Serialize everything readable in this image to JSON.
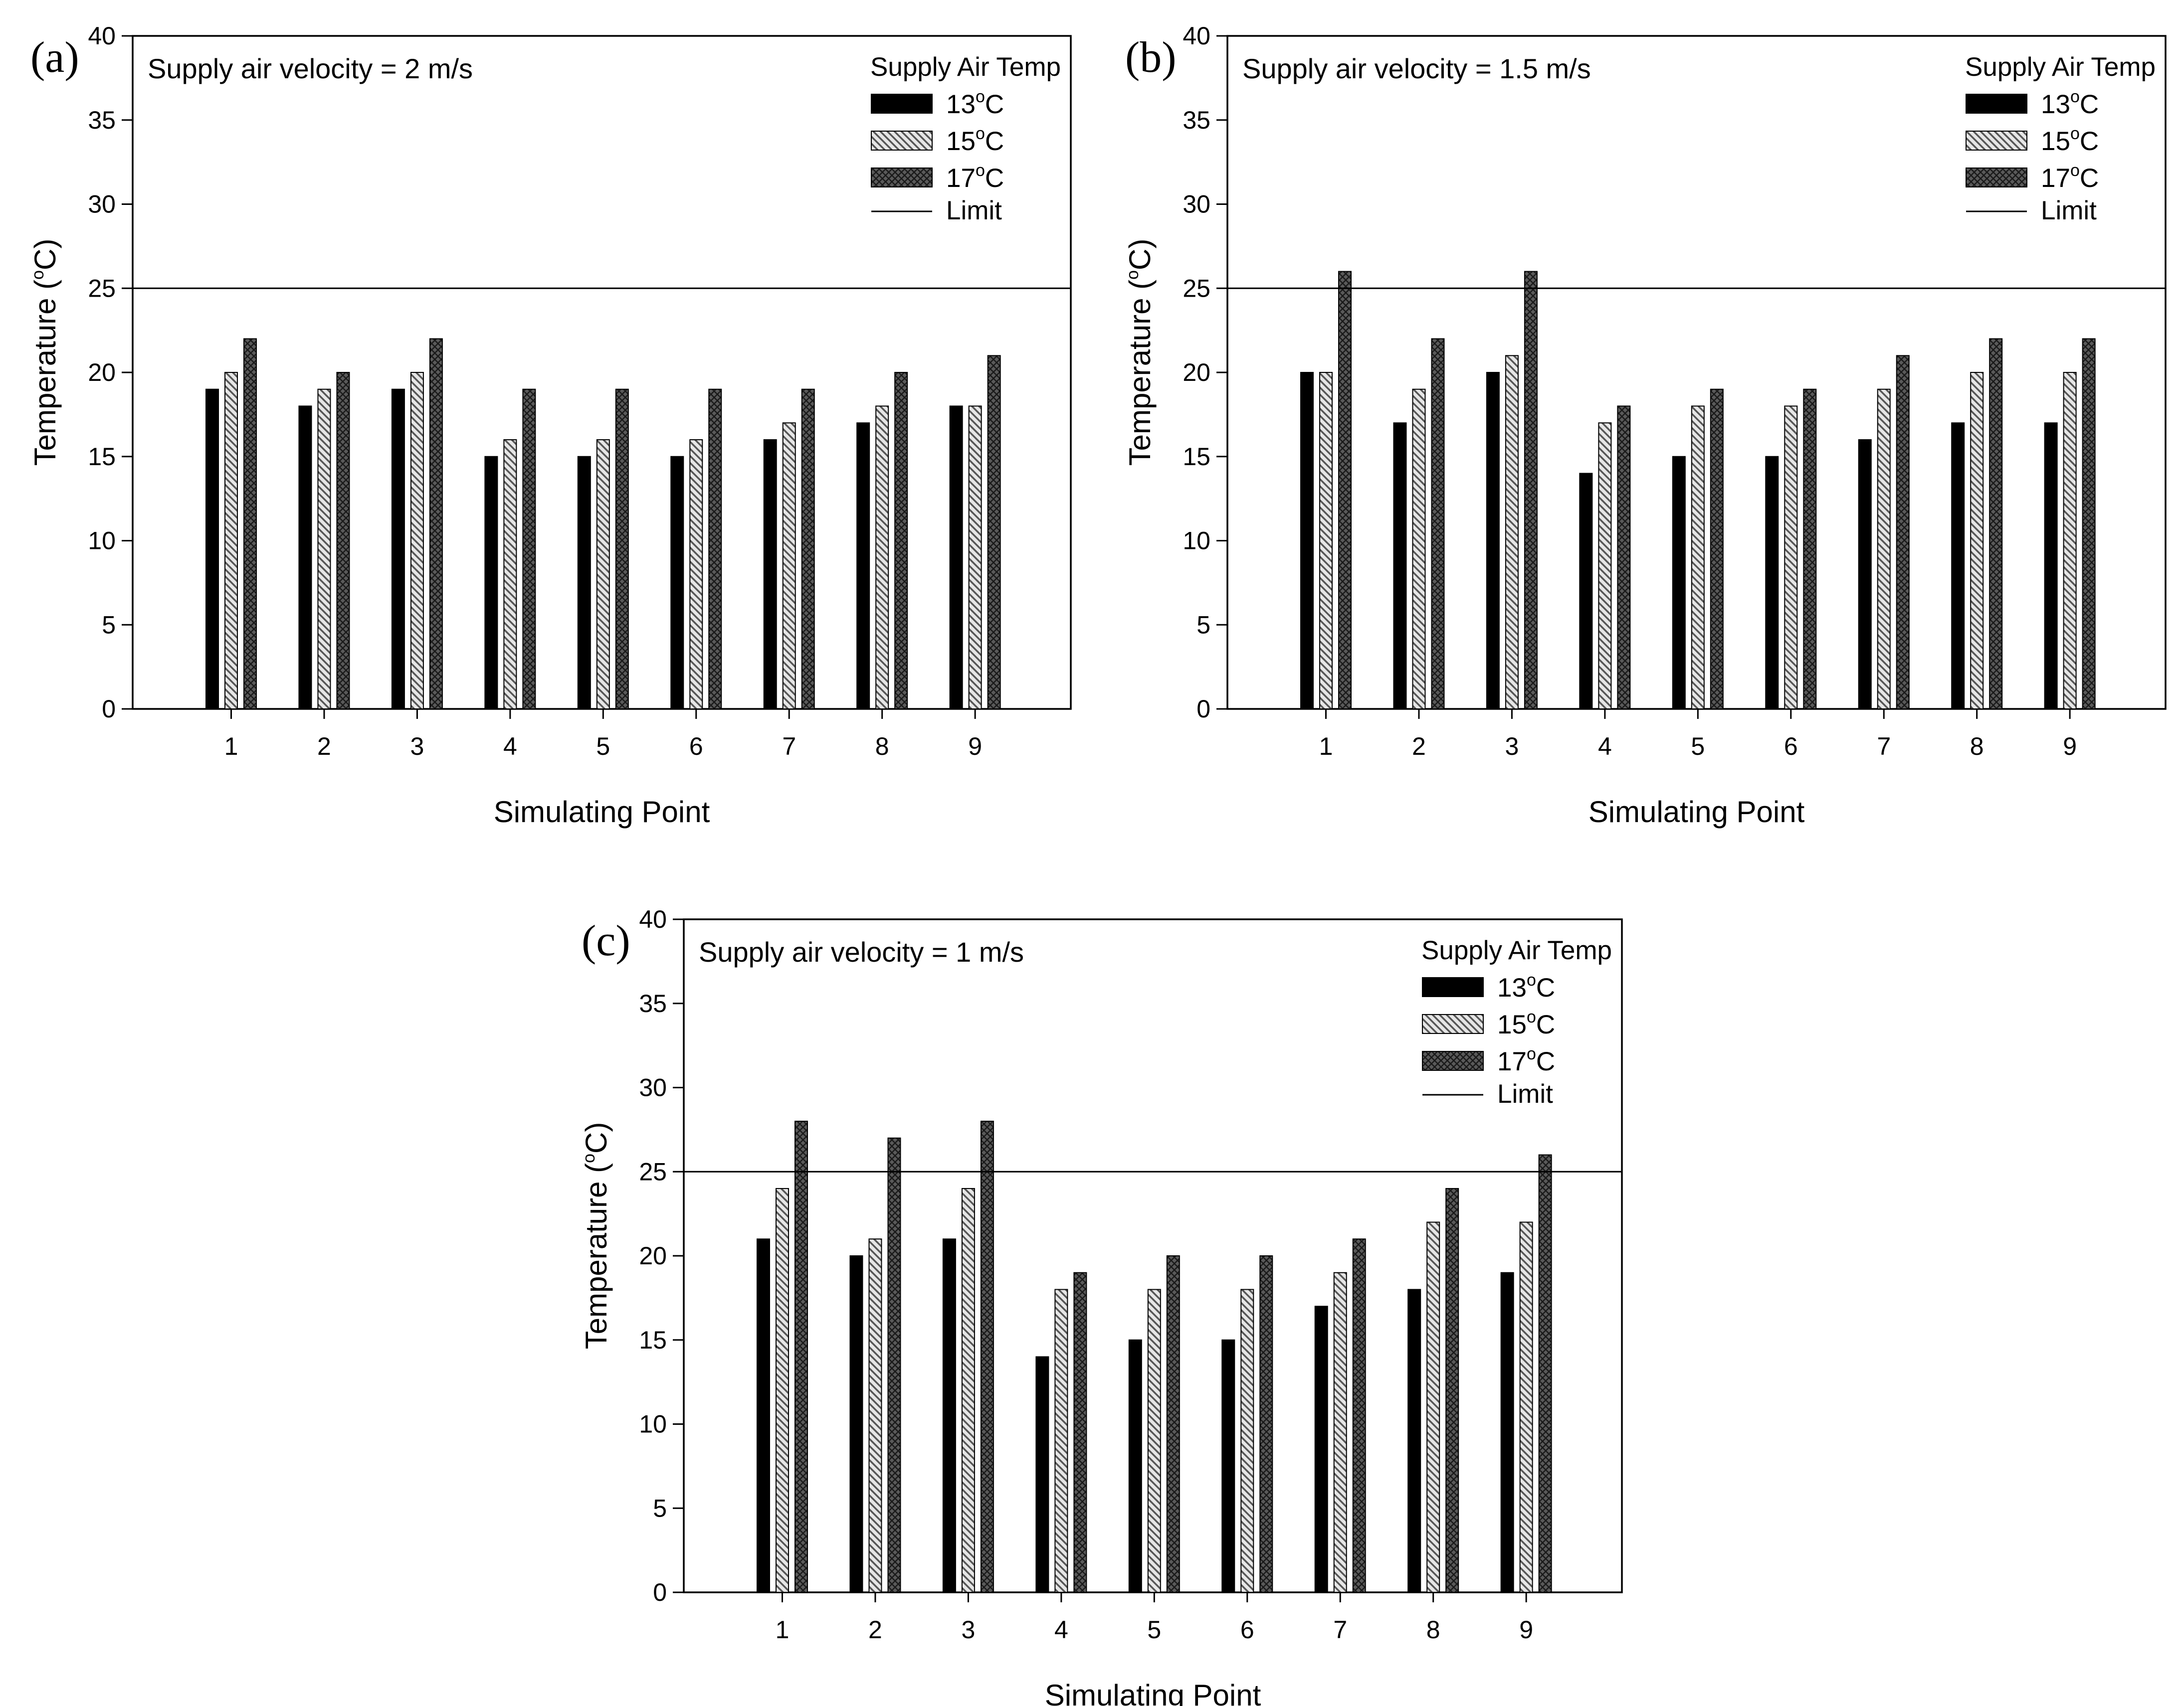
{
  "chart_data": [
    {
      "type": "bar",
      "panel_label": "(a)",
      "annotation": "Supply air velocity = 2 m/s",
      "legend_title": "Supply Air Temp",
      "legend_position": "top-right",
      "xlabel": "Simulating Point",
      "ylabel": {
        "text": "Temperature (",
        "sup": "o",
        "tail": "C)"
      },
      "categories": [
        "1",
        "2",
        "3",
        "4",
        "5",
        "6",
        "7",
        "8",
        "9"
      ],
      "yticks": [
        "0",
        "5",
        "10",
        "15",
        "20",
        "25",
        "30",
        "35",
        "40"
      ],
      "ylim": [
        0,
        40
      ],
      "grid": false,
      "series": [
        {
          "name": "13",
          "unit": "C",
          "style": "solid-black",
          "values": [
            19,
            18,
            19,
            15,
            15,
            15,
            16,
            17,
            18
          ]
        },
        {
          "name": "15",
          "unit": "C",
          "style": "hatch-light",
          "values": [
            20,
            19,
            20,
            16,
            16,
            16,
            17,
            18,
            18
          ]
        },
        {
          "name": "17",
          "unit": "C",
          "style": "crosshatch-dark",
          "values": [
            22,
            20,
            22,
            19,
            19,
            19,
            19,
            20,
            21
          ]
        }
      ],
      "limit": {
        "name": "Limit",
        "value": 25
      }
    },
    {
      "type": "bar",
      "panel_label": "(b)",
      "annotation": "Supply air velocity = 1.5 m/s",
      "legend_title": "Supply Air Temp",
      "legend_position": "top-right",
      "xlabel": "Simulating Point",
      "ylabel": {
        "text": "Temperature (",
        "sup": "o",
        "tail": "C)"
      },
      "categories": [
        "1",
        "2",
        "3",
        "4",
        "5",
        "6",
        "7",
        "8",
        "9"
      ],
      "yticks": [
        "0",
        "5",
        "10",
        "15",
        "20",
        "25",
        "30",
        "35",
        "40"
      ],
      "ylim": [
        0,
        40
      ],
      "grid": false,
      "series": [
        {
          "name": "13",
          "unit": "C",
          "style": "solid-black",
          "values": [
            20,
            17,
            20,
            14,
            15,
            15,
            16,
            17,
            17
          ]
        },
        {
          "name": "15",
          "unit": "C",
          "style": "hatch-light",
          "values": [
            20,
            19,
            21,
            17,
            18,
            18,
            19,
            20,
            20
          ]
        },
        {
          "name": "17",
          "unit": "C",
          "style": "crosshatch-dark",
          "values": [
            26,
            22,
            26,
            18,
            19,
            19,
            21,
            22,
            22
          ]
        }
      ],
      "limit": {
        "name": "Limit",
        "value": 25
      }
    },
    {
      "type": "bar",
      "panel_label": "(c)",
      "annotation": "Supply air velocity = 1 m/s",
      "legend_title": "Supply Air Temp",
      "legend_position": "top-right",
      "xlabel": "Simulating Point",
      "ylabel": {
        "text": "Temperature (",
        "sup": "o",
        "tail": "C)"
      },
      "categories": [
        "1",
        "2",
        "3",
        "4",
        "5",
        "6",
        "7",
        "8",
        "9"
      ],
      "yticks": [
        "0",
        "5",
        "10",
        "15",
        "20",
        "25",
        "30",
        "35",
        "40"
      ],
      "ylim": [
        0,
        40
      ],
      "grid": false,
      "series": [
        {
          "name": "13",
          "unit": "C",
          "style": "solid-black",
          "values": [
            21,
            20,
            21,
            14,
            15,
            15,
            17,
            18,
            19
          ]
        },
        {
          "name": "15",
          "unit": "C",
          "style": "hatch-light",
          "values": [
            24,
            21,
            24,
            18,
            18,
            18,
            19,
            22,
            22
          ]
        },
        {
          "name": "17",
          "unit": "C",
          "style": "crosshatch-dark",
          "values": [
            28,
            27,
            28,
            19,
            20,
            20,
            21,
            24,
            26
          ]
        }
      ],
      "limit": {
        "name": "Limit",
        "value": 25
      }
    }
  ]
}
